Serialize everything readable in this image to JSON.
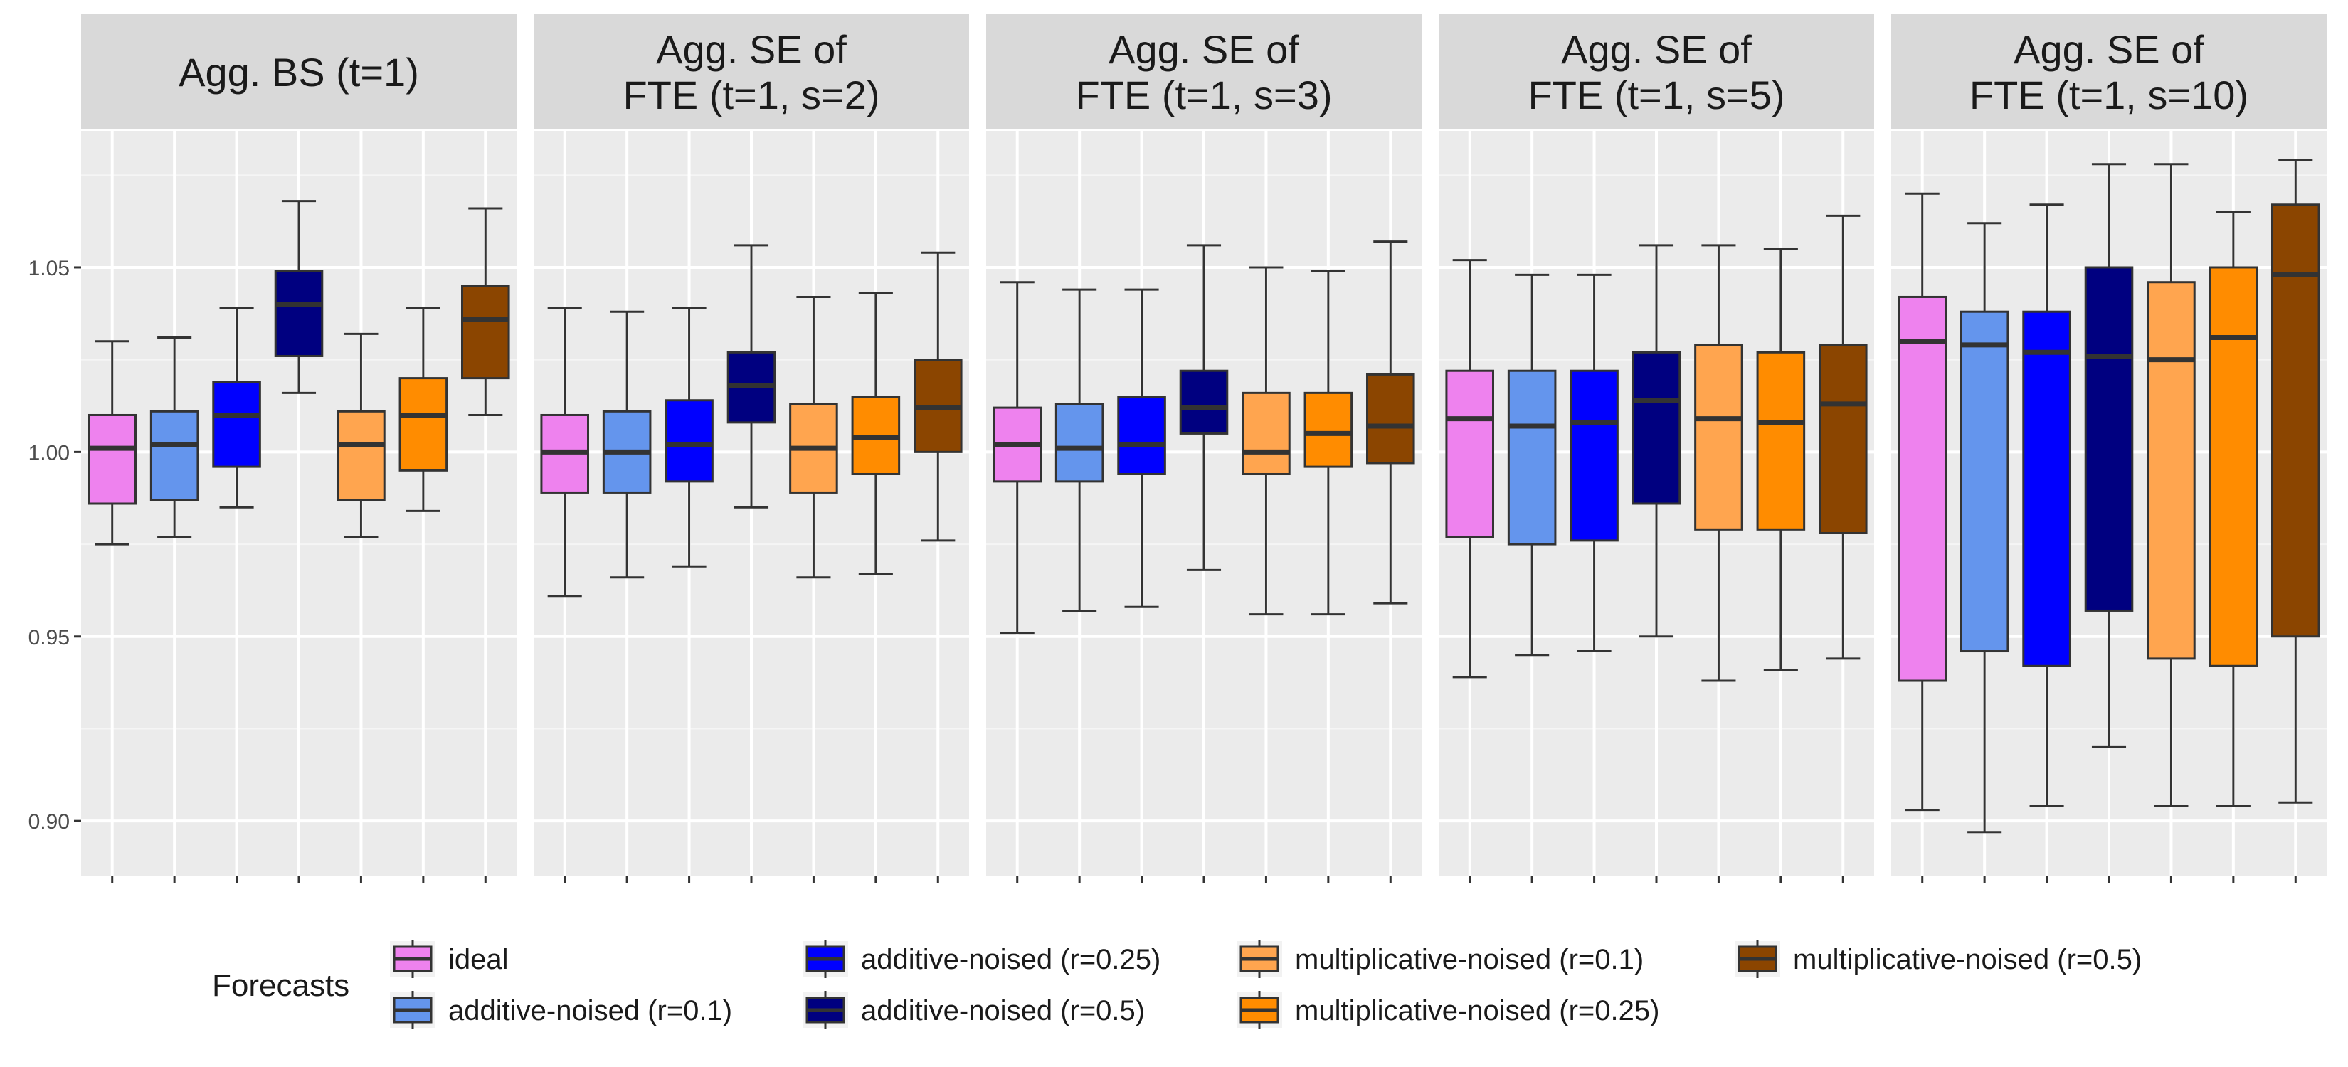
{
  "chart_data": {
    "type": "boxplot",
    "ylim": [
      0.885,
      1.087
    ],
    "y_ticks": [
      0.9,
      0.95,
      1.0,
      1.05
    ],
    "y_tick_labels": [
      "0.90",
      "0.95",
      "1.00",
      "1.05"
    ],
    "legend": {
      "title": "Forecasts",
      "entries": [
        {
          "label": "ideal",
          "color": "#EE82EE"
        },
        {
          "label": "additive-noised (r=0.1)",
          "color": "#6495ED"
        },
        {
          "label": "additive-noised (r=0.25)",
          "color": "#0000FF"
        },
        {
          "label": "additive-noised (r=0.5)",
          "color": "#000080"
        },
        {
          "label": "multiplicative-noised (r=0.1)",
          "color": "#FFA54F"
        },
        {
          "label": "multiplicative-noised (r=0.25)",
          "color": "#FF8C00"
        },
        {
          "label": "multiplicative-noised (r=0.5)",
          "color": "#8B4500"
        }
      ]
    },
    "panels": [
      {
        "title_lines": [
          "Agg. BS (t=1)"
        ],
        "boxes": [
          {
            "series": "ideal",
            "whisker_low": 0.975,
            "q1": 0.986,
            "median": 1.001,
            "q3": 1.01,
            "whisker_high": 1.03
          },
          {
            "series": "additive-noised (r=0.1)",
            "whisker_low": 0.977,
            "q1": 0.987,
            "median": 1.002,
            "q3": 1.011,
            "whisker_high": 1.031
          },
          {
            "series": "additive-noised (r=0.25)",
            "whisker_low": 0.985,
            "q1": 0.996,
            "median": 1.01,
            "q3": 1.019,
            "whisker_high": 1.039
          },
          {
            "series": "additive-noised (r=0.5)",
            "whisker_low": 1.016,
            "q1": 1.026,
            "median": 1.04,
            "q3": 1.049,
            "whisker_high": 1.068
          },
          {
            "series": "multiplicative-noised (r=0.1)",
            "whisker_low": 0.977,
            "q1": 0.987,
            "median": 1.002,
            "q3": 1.011,
            "whisker_high": 1.032
          },
          {
            "series": "multiplicative-noised (r=0.25)",
            "whisker_low": 0.984,
            "q1": 0.995,
            "median": 1.01,
            "q3": 1.02,
            "whisker_high": 1.039
          },
          {
            "series": "multiplicative-noised (r=0.5)",
            "whisker_low": 1.01,
            "q1": 1.02,
            "median": 1.036,
            "q3": 1.045,
            "whisker_high": 1.066
          }
        ]
      },
      {
        "title_lines": [
          "Agg. SE of",
          "FTE (t=1, s=2)"
        ],
        "boxes": [
          {
            "series": "ideal",
            "whisker_low": 0.961,
            "q1": 0.989,
            "median": 1.0,
            "q3": 1.01,
            "whisker_high": 1.039
          },
          {
            "series": "additive-noised (r=0.1)",
            "whisker_low": 0.966,
            "q1": 0.989,
            "median": 1.0,
            "q3": 1.011,
            "whisker_high": 1.038
          },
          {
            "series": "additive-noised (r=0.25)",
            "whisker_low": 0.969,
            "q1": 0.992,
            "median": 1.002,
            "q3": 1.014,
            "whisker_high": 1.039
          },
          {
            "series": "additive-noised (r=0.5)",
            "whisker_low": 0.985,
            "q1": 1.008,
            "median": 1.018,
            "q3": 1.027,
            "whisker_high": 1.056
          },
          {
            "series": "multiplicative-noised (r=0.1)",
            "whisker_low": 0.966,
            "q1": 0.989,
            "median": 1.001,
            "q3": 1.013,
            "whisker_high": 1.042
          },
          {
            "series": "multiplicative-noised (r=0.25)",
            "whisker_low": 0.967,
            "q1": 0.994,
            "median": 1.004,
            "q3": 1.015,
            "whisker_high": 1.043
          },
          {
            "series": "multiplicative-noised (r=0.5)",
            "whisker_low": 0.976,
            "q1": 1.0,
            "median": 1.012,
            "q3": 1.025,
            "whisker_high": 1.054
          }
        ]
      },
      {
        "title_lines": [
          "Agg. SE of",
          "FTE (t=1, s=3)"
        ],
        "boxes": [
          {
            "series": "ideal",
            "whisker_low": 0.951,
            "q1": 0.992,
            "median": 1.002,
            "q3": 1.012,
            "whisker_high": 1.046
          },
          {
            "series": "additive-noised (r=0.1)",
            "whisker_low": 0.957,
            "q1": 0.992,
            "median": 1.001,
            "q3": 1.013,
            "whisker_high": 1.044
          },
          {
            "series": "additive-noised (r=0.25)",
            "whisker_low": 0.958,
            "q1": 0.994,
            "median": 1.002,
            "q3": 1.015,
            "whisker_high": 1.044
          },
          {
            "series": "additive-noised (r=0.5)",
            "whisker_low": 0.968,
            "q1": 1.005,
            "median": 1.012,
            "q3": 1.022,
            "whisker_high": 1.056
          },
          {
            "series": "multiplicative-noised (r=0.1)",
            "whisker_low": 0.956,
            "q1": 0.994,
            "median": 1.0,
            "q3": 1.016,
            "whisker_high": 1.05
          },
          {
            "series": "multiplicative-noised (r=0.25)",
            "whisker_low": 0.956,
            "q1": 0.996,
            "median": 1.005,
            "q3": 1.016,
            "whisker_high": 1.049
          },
          {
            "series": "multiplicative-noised (r=0.5)",
            "whisker_low": 0.959,
            "q1": 0.997,
            "median": 1.007,
            "q3": 1.021,
            "whisker_high": 1.057
          }
        ]
      },
      {
        "title_lines": [
          "Agg. SE of",
          "FTE (t=1, s=5)"
        ],
        "boxes": [
          {
            "series": "ideal",
            "whisker_low": 0.939,
            "q1": 0.977,
            "median": 1.009,
            "q3": 1.022,
            "whisker_high": 1.052
          },
          {
            "series": "additive-noised (r=0.1)",
            "whisker_low": 0.945,
            "q1": 0.975,
            "median": 1.007,
            "q3": 1.022,
            "whisker_high": 1.048
          },
          {
            "series": "additive-noised (r=0.25)",
            "whisker_low": 0.946,
            "q1": 0.976,
            "median": 1.008,
            "q3": 1.022,
            "whisker_high": 1.048
          },
          {
            "series": "additive-noised (r=0.5)",
            "whisker_low": 0.95,
            "q1": 0.986,
            "median": 1.014,
            "q3": 1.027,
            "whisker_high": 1.056
          },
          {
            "series": "multiplicative-noised (r=0.1)",
            "whisker_low": 0.938,
            "q1": 0.979,
            "median": 1.009,
            "q3": 1.029,
            "whisker_high": 1.056
          },
          {
            "series": "multiplicative-noised (r=0.25)",
            "whisker_low": 0.941,
            "q1": 0.979,
            "median": 1.008,
            "q3": 1.027,
            "whisker_high": 1.055
          },
          {
            "series": "multiplicative-noised (r=0.5)",
            "whisker_low": 0.944,
            "q1": 0.978,
            "median": 1.013,
            "q3": 1.029,
            "whisker_high": 1.064
          }
        ]
      },
      {
        "title_lines": [
          "Agg. SE of",
          "FTE (t=1, s=10)"
        ],
        "boxes": [
          {
            "series": "ideal",
            "whisker_low": 0.903,
            "q1": 0.938,
            "median": 1.03,
            "q3": 1.042,
            "whisker_high": 1.07
          },
          {
            "series": "additive-noised (r=0.1)",
            "whisker_low": 0.897,
            "q1": 0.946,
            "median": 1.029,
            "q3": 1.038,
            "whisker_high": 1.062
          },
          {
            "series": "additive-noised (r=0.25)",
            "whisker_low": 0.904,
            "q1": 0.942,
            "median": 1.027,
            "q3": 1.038,
            "whisker_high": 1.067
          },
          {
            "series": "additive-noised (r=0.5)",
            "whisker_low": 0.92,
            "q1": 0.957,
            "median": 1.026,
            "q3": 1.05,
            "whisker_high": 1.078
          },
          {
            "series": "multiplicative-noised (r=0.1)",
            "whisker_low": 0.904,
            "q1": 0.944,
            "median": 1.025,
            "q3": 1.046,
            "whisker_high": 1.078
          },
          {
            "series": "multiplicative-noised (r=0.25)",
            "whisker_low": 0.904,
            "q1": 0.942,
            "median": 1.031,
            "q3": 1.05,
            "whisker_high": 1.065
          },
          {
            "series": "multiplicative-noised (r=0.5)",
            "whisker_low": 0.905,
            "q1": 0.95,
            "median": 1.048,
            "q3": 1.067,
            "whisker_high": 1.079
          }
        ]
      }
    ]
  }
}
